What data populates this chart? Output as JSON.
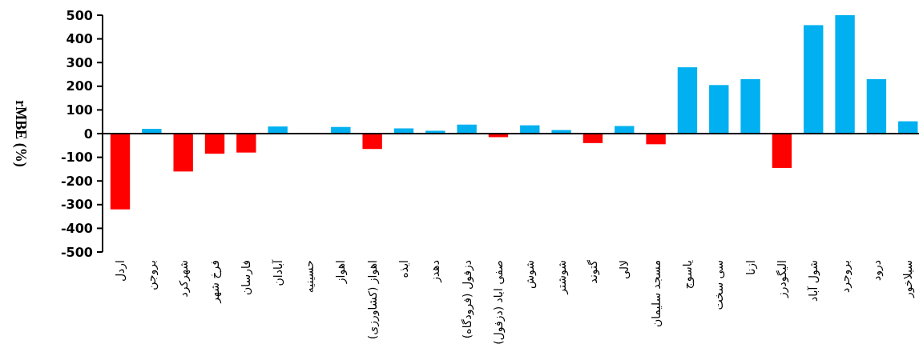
{
  "chart_data": {
    "type": "bar",
    "ylabel": "rMBE (%)",
    "categories": [
      "اردل",
      "بروجن",
      "شهرکرد",
      "فرخ شهر",
      "فارسان",
      "آبادان",
      "حسینیه",
      "اهواز",
      "اهواز (کشاورزی)",
      "ایذه",
      "دهدز",
      "دزفول (فرودگاه)",
      "صفی اباد (دزفول)",
      "شوش",
      "شوشتر",
      "گتوند",
      "لالی",
      "مسجد سلیمان",
      "یاسوج",
      "سی سخت",
      "ازنا",
      "الیگودرز",
      "شول آباد",
      "بروجرد",
      "درود",
      "سیلاخور"
    ],
    "values": [
      -320,
      20,
      -160,
      -85,
      -80,
      30,
      0,
      28,
      -65,
      22,
      12,
      38,
      -15,
      35,
      15,
      -40,
      32,
      -45,
      280,
      205,
      230,
      -145,
      458,
      500,
      230,
      52
    ],
    "colors": [
      "#ff0000",
      "#00b0f0",
      "#ff0000",
      "#ff0000",
      "#ff0000",
      "#00b0f0",
      "#00b0f0",
      "#00b0f0",
      "#ff0000",
      "#00b0f0",
      "#00b0f0",
      "#00b0f0",
      "#ff0000",
      "#00b0f0",
      "#00b0f0",
      "#ff0000",
      "#00b0f0",
      "#ff0000",
      "#00b0f0",
      "#00b0f0",
      "#00b0f0",
      "#ff0000",
      "#00b0f0",
      "#00b0f0",
      "#00b0f0",
      "#00b0f0"
    ],
    "ylim": [
      -500,
      500
    ],
    "yticks": [
      -500,
      -400,
      -300,
      -200,
      -100,
      0,
      100,
      200,
      300,
      400,
      500
    ]
  }
}
